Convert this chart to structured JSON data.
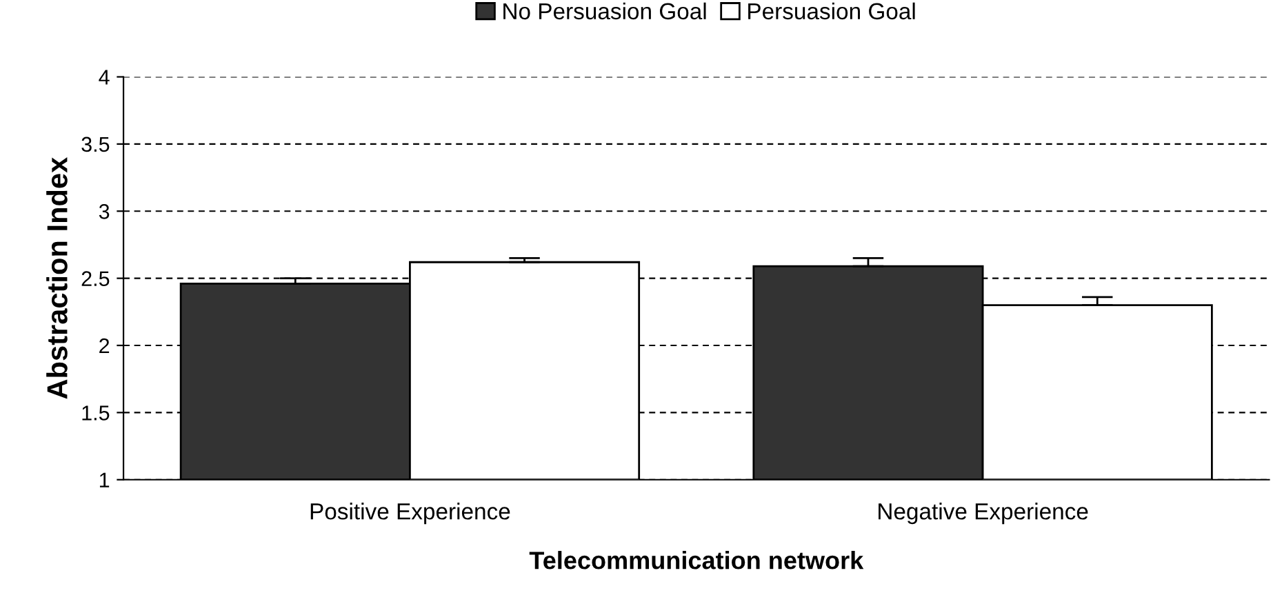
{
  "chart_data": {
    "type": "bar",
    "xlabel": "Telecommunication network",
    "ylabel": "Abstraction Index",
    "categories": [
      "Positive Experience",
      "Negative Experience"
    ],
    "series": [
      {
        "name": "No Persuasion Goal",
        "color": "#333333",
        "values": [
          2.46,
          2.59
        ],
        "errors": [
          [
            2.46,
            2.5
          ],
          [
            2.59,
            2.65
          ]
        ]
      },
      {
        "name": "Persuasion Goal",
        "color": "#ffffff",
        "values": [
          2.62,
          2.3
        ],
        "errors": [
          [
            2.62,
            2.65
          ],
          [
            2.3,
            2.36
          ]
        ]
      }
    ],
    "ylim": [
      1,
      4
    ],
    "yticks": [
      1,
      1.5,
      2,
      2.5,
      3,
      3.5,
      4
    ],
    "grid": "y",
    "line_style": "dashed",
    "legend": "top"
  }
}
